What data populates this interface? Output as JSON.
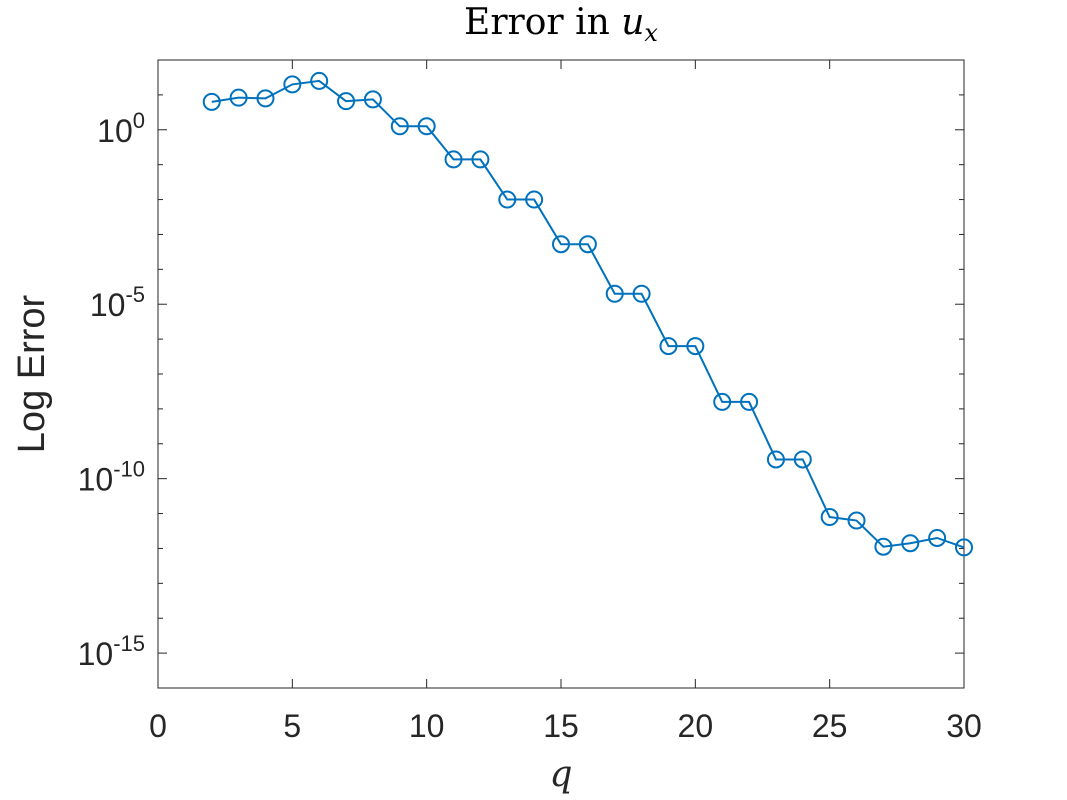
{
  "chart_data": {
    "type": "line",
    "title": "Error in ",
    "title_math": "u",
    "title_math_sub": "x",
    "xlabel": "q",
    "ylabel": "Log Error",
    "xlim": [
      0,
      30
    ],
    "ylim_exp": [
      -16,
      2
    ],
    "y_scale": "log",
    "grid": false,
    "legend": "none",
    "x_ticks": [
      0,
      5,
      10,
      15,
      20,
      25,
      30
    ],
    "x_tick_labels": [
      "0",
      "5",
      "10",
      "15",
      "20",
      "25",
      "30"
    ],
    "y_ticks_exp": [
      0,
      -5,
      -10,
      -15
    ],
    "y_tick_base": "10",
    "y_tick_exponents": [
      "0",
      "-5",
      "-10",
      "-15"
    ],
    "series": [
      {
        "color": "#0072BD",
        "marker": "circle",
        "x": [
          2,
          3,
          4,
          5,
          6,
          7,
          8,
          9,
          10,
          11,
          12,
          13,
          14,
          15,
          16,
          17,
          18,
          19,
          20,
          21,
          22,
          23,
          24,
          25,
          26,
          27,
          28,
          29,
          30
        ],
        "y_exp": [
          0.8,
          0.92,
          0.9,
          1.3,
          1.4,
          0.82,
          0.87,
          0.1,
          0.1,
          -0.85,
          -0.85,
          -2.0,
          -2.0,
          -3.28,
          -3.28,
          -4.7,
          -4.7,
          -6.2,
          -6.2,
          -7.8,
          -7.8,
          -9.45,
          -9.45,
          -11.1,
          -11.2,
          -11.95,
          -11.85,
          -11.7,
          -11.97
        ]
      }
    ]
  }
}
